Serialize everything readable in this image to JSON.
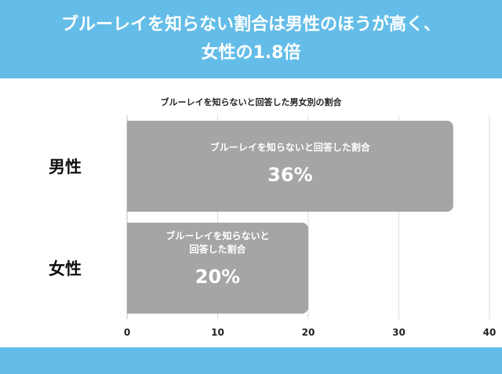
{
  "header": {
    "line1": "ブルーレイを知らない割合は男性のほうが高く、",
    "line2": "女性の1.8倍"
  },
  "chart_data": {
    "type": "bar",
    "orientation": "horizontal",
    "title": "ブルーレイを知らないと回答した男女別の割合",
    "categories": [
      "男性",
      "女性"
    ],
    "values": [
      36,
      20
    ],
    "value_labels": [
      "36%",
      "20%"
    ],
    "bar_captions": [
      [
        "ブルーレイを知らないと回答した割合"
      ],
      [
        "ブルーレイを知らないと",
        "回答した割合"
      ]
    ],
    "xlim": [
      0,
      40
    ],
    "xticks": [
      0,
      10,
      20,
      30,
      40
    ],
    "xlabel": "",
    "ylabel": "",
    "grid": true,
    "legend": false,
    "colors": {
      "bar": "#a5a5a5",
      "banner": "#64bde8",
      "grid": "#d9d9d9"
    }
  }
}
